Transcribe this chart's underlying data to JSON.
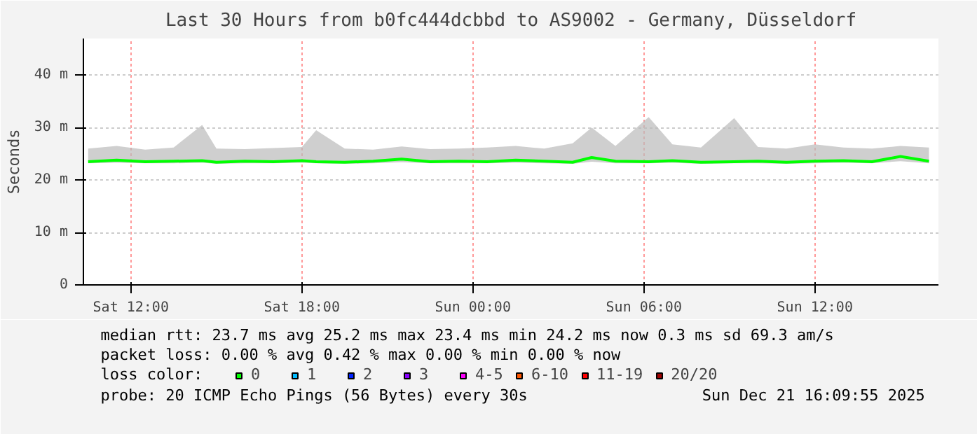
{
  "chart_data": {
    "type": "line",
    "title": "Last 30 Hours from b0fc444dcbbd to AS9002 - Germany, Düsseldorf",
    "ylabel": "Seconds",
    "x": [
      "2025-12-20T10:30",
      "2025-12-20T11:30",
      "2025-12-20T12:30",
      "2025-12-20T13:30",
      "2025-12-20T14:30",
      "2025-12-20T15:00",
      "2025-12-20T16:00",
      "2025-12-20T17:00",
      "2025-12-20T18:00",
      "2025-12-20T18:30",
      "2025-12-20T19:30",
      "2025-12-20T20:30",
      "2025-12-20T21:30",
      "2025-12-20T22:30",
      "2025-12-20T23:30",
      "2025-12-21T00:30",
      "2025-12-21T01:30",
      "2025-12-21T02:30",
      "2025-12-21T03:30",
      "2025-12-21T04:10",
      "2025-12-21T05:00",
      "2025-12-21T06:10",
      "2025-12-21T07:00",
      "2025-12-21T08:00",
      "2025-12-21T09:10",
      "2025-12-21T10:00",
      "2025-12-21T11:00",
      "2025-12-21T12:00",
      "2025-12-21T13:00",
      "2025-12-21T14:00",
      "2025-12-21T15:00",
      "2025-12-21T16:00"
    ],
    "series": [
      {
        "name": "0",
        "color": "#00ff00",
        "values": [
          23.5,
          23.8,
          23.5,
          23.6,
          23.7,
          23.4,
          23.6,
          23.5,
          23.7,
          23.5,
          23.4,
          23.6,
          24.0,
          23.5,
          23.6,
          23.5,
          23.8,
          23.6,
          23.4,
          24.3,
          23.6,
          23.5,
          23.7,
          23.4,
          23.5,
          23.6,
          23.4,
          23.6,
          23.7,
          23.5,
          24.5,
          23.6
        ],
        "lower": [
          23.2,
          23.3,
          23.2,
          23.2,
          23.3,
          23.1,
          23.2,
          23.2,
          23.3,
          23.2,
          23.1,
          23.2,
          23.4,
          23.2,
          23.2,
          23.2,
          23.3,
          23.2,
          23.1,
          23.5,
          23.2,
          23.2,
          23.3,
          23.1,
          23.2,
          23.2,
          23.1,
          23.2,
          23.3,
          23.2,
          23.6,
          23.2
        ],
        "upper": [
          26.0,
          26.5,
          25.8,
          26.2,
          30.5,
          26.0,
          25.9,
          26.1,
          26.3,
          29.5,
          26.0,
          25.8,
          26.4,
          25.9,
          26.0,
          26.2,
          26.5,
          26.0,
          27.0,
          30.0,
          26.5,
          32.0,
          26.8,
          26.2,
          31.8,
          26.3,
          26.0,
          26.8,
          26.2,
          26.0,
          26.5,
          26.2
        ]
      },
      {
        "name": "1",
        "color": "#00bbff",
        "values": [
          null,
          null,
          null,
          null,
          null,
          null,
          null,
          null,
          null,
          null,
          null,
          null,
          null,
          null,
          null,
          null,
          null,
          null,
          null,
          null,
          null,
          null,
          null,
          null,
          null,
          null,
          null,
          null,
          null,
          null,
          null,
          null
        ]
      },
      {
        "name": "2",
        "color": "#0022ff",
        "values": [
          null,
          null,
          null,
          null,
          null,
          null,
          null,
          null,
          null,
          null,
          null,
          null,
          null,
          null,
          null,
          null,
          null,
          null,
          null,
          null,
          null,
          null,
          null,
          null,
          null,
          null,
          null,
          null,
          null,
          null,
          null,
          null
        ]
      },
      {
        "name": "3",
        "color": "#8a00ff",
        "values": [
          null,
          null,
          null,
          null,
          null,
          null,
          null,
          null,
          null,
          null,
          null,
          null,
          null,
          null,
          null,
          null,
          null,
          null,
          null,
          null,
          null,
          null,
          null,
          null,
          null,
          null,
          null,
          null,
          null,
          null,
          null,
          null
        ]
      },
      {
        "name": "4-5",
        "color": "#ff00ff",
        "values": [
          null,
          null,
          null,
          null,
          null,
          null,
          null,
          null,
          null,
          null,
          null,
          null,
          null,
          null,
          null,
          null,
          null,
          null,
          null,
          null,
          null,
          null,
          null,
          null,
          null,
          null,
          null,
          null,
          null,
          null,
          null,
          null
        ]
      },
      {
        "name": "6-10",
        "color": "#ff5500",
        "values": [
          null,
          null,
          null,
          null,
          null,
          null,
          null,
          null,
          null,
          null,
          null,
          null,
          null,
          null,
          null,
          null,
          null,
          null,
          null,
          null,
          null,
          null,
          null,
          null,
          null,
          null,
          null,
          null,
          null,
          null,
          null,
          null
        ]
      },
      {
        "name": "11-19",
        "color": "#ff0000",
        "values": [
          null,
          null,
          null,
          null,
          null,
          null,
          null,
          null,
          null,
          null,
          null,
          null,
          null,
          null,
          null,
          null,
          null,
          null,
          null,
          null,
          null,
          null,
          null,
          null,
          null,
          null,
          null,
          null,
          null,
          null,
          null,
          null
        ]
      },
      {
        "name": "20/20",
        "color": "#a10000",
        "values": [
          null,
          null,
          null,
          null,
          null,
          null,
          null,
          null,
          null,
          null,
          null,
          null,
          null,
          null,
          null,
          null,
          null,
          null,
          null,
          null,
          null,
          null,
          null,
          null,
          null,
          null,
          null,
          null,
          null,
          null,
          null,
          null
        ]
      }
    ],
    "legend_title": "loss color:",
    "legend": "bottom",
    "xlim": [
      "2025-12-20T10:20",
      "2025-12-21T16:20"
    ],
    "xticks": [
      {
        "value": "2025-12-20T12:00",
        "label": "Sat 12:00"
      },
      {
        "value": "2025-12-20T18:00",
        "label": "Sat 18:00"
      },
      {
        "value": "2025-12-21T00:00",
        "label": "Sun 00:00"
      },
      {
        "value": "2025-12-21T06:00",
        "label": "Sun 06:00"
      },
      {
        "value": "2025-12-21T12:00",
        "label": "Sun 12:00"
      }
    ],
    "ylim": [
      0,
      47
    ],
    "yticks": [
      0,
      {
        "value": 10,
        "label": "10 m"
      },
      {
        "value": 20,
        "label": "20 m"
      },
      {
        "value": 30,
        "label": "30 m"
      },
      {
        "value": 40,
        "label": "40 m"
      }
    ],
    "grid": true,
    "annotations": [
      "median rtt:  23.7 ms avg   25.2 ms max   23.4 ms min   24.2 ms now   0.3 ms sd   69.3    am/s",
      "packet loss: 0.00 % avg   0.42 % max   0.00 % min   0.00 % now",
      "probe:        20 ICMP Echo Pings (56 Bytes) every 30s",
      "Sun Dec 21 16:09:55 2025"
    ]
  }
}
